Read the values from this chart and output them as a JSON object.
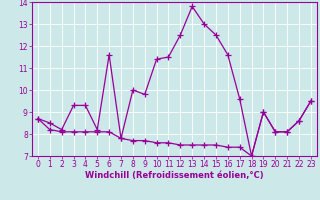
{
  "xlabel": "Windchill (Refroidissement éolien,°C)",
  "bg_color": "#cce8e8",
  "grid_color": "#ffffff",
  "line_color": "#990099",
  "spine_color": "#660066",
  "xlim": [
    -0.5,
    23.5
  ],
  "ylim": [
    7,
    14
  ],
  "xticks": [
    0,
    1,
    2,
    3,
    4,
    5,
    6,
    7,
    8,
    9,
    10,
    11,
    12,
    13,
    14,
    15,
    16,
    17,
    18,
    19,
    20,
    21,
    22,
    23
  ],
  "yticks": [
    7,
    8,
    9,
    10,
    11,
    12,
    13,
    14
  ],
  "line1_x": [
    0,
    1,
    2,
    3,
    4,
    5,
    6,
    7,
    8,
    9,
    10,
    11,
    12,
    13,
    14,
    15,
    16,
    17,
    18,
    19,
    20,
    21,
    22,
    23
  ],
  "line1_y": [
    8.7,
    8.5,
    8.2,
    9.3,
    9.3,
    8.2,
    11.6,
    7.8,
    10.0,
    9.8,
    11.4,
    11.5,
    12.5,
    13.8,
    13.0,
    12.5,
    11.6,
    9.6,
    7.0,
    9.0,
    8.1,
    8.1,
    8.6,
    9.5
  ],
  "line2_x": [
    0,
    1,
    2,
    3,
    4,
    5,
    6,
    7,
    8,
    9,
    10,
    11,
    12,
    13,
    14,
    15,
    16,
    17,
    18,
    19,
    20,
    21,
    22,
    23
  ],
  "line2_y": [
    8.7,
    8.2,
    8.1,
    8.1,
    8.1,
    8.1,
    8.1,
    7.8,
    7.7,
    7.7,
    7.6,
    7.6,
    7.5,
    7.5,
    7.5,
    7.5,
    7.4,
    7.4,
    7.0,
    9.0,
    8.1,
    8.1,
    8.6,
    9.5
  ],
  "tick_fontsize": 5.5,
  "xlabel_fontsize": 6.0
}
